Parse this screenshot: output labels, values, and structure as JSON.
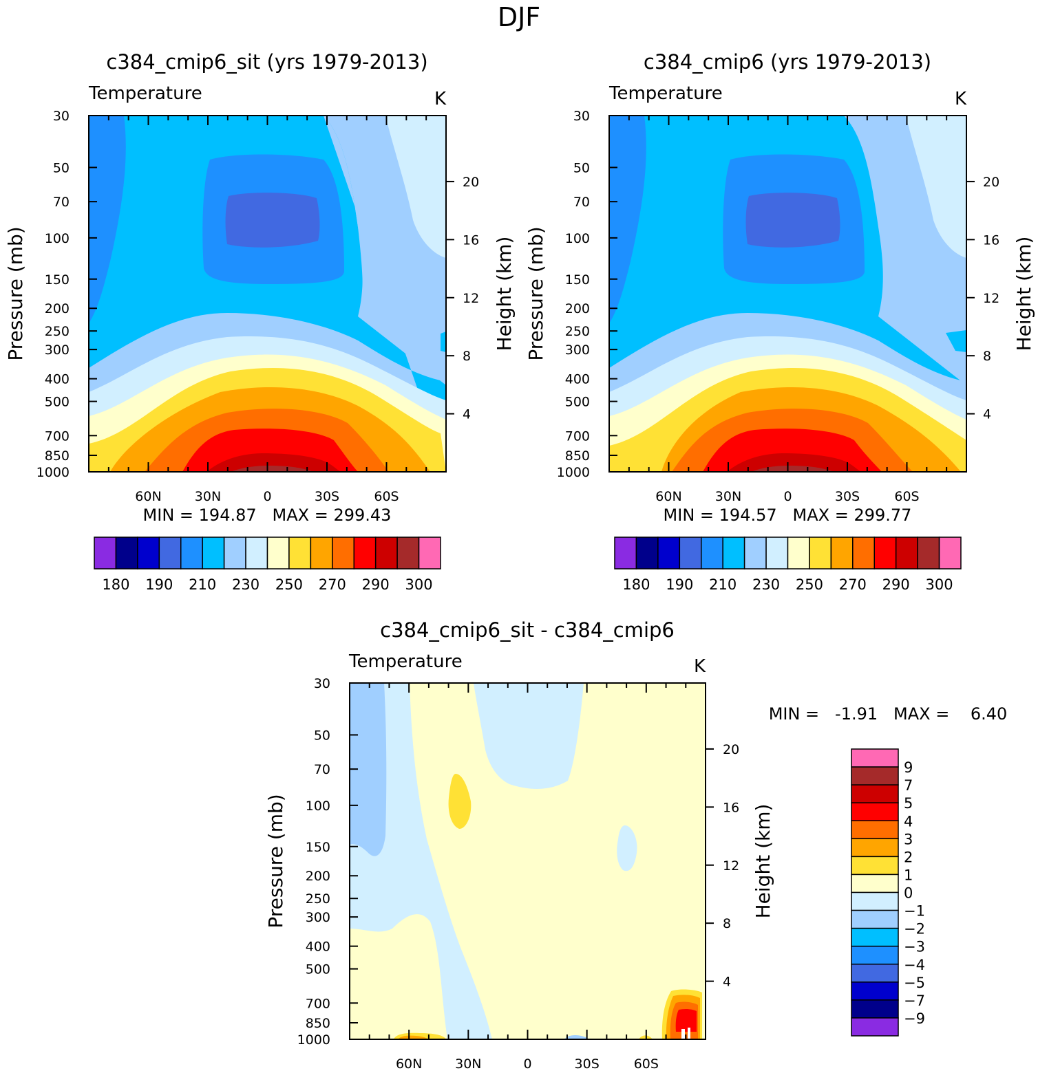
{
  "figure_title": "DJF",
  "colors": {
    "abs": [
      "#8a2be2",
      "#00008b",
      "#0000cd",
      "#4169e1",
      "#1e90ff",
      "#00bfff",
      "#a0cfff",
      "#d1efff",
      "#ffffcc",
      "#ffe135",
      "#ffa500",
      "#ff6e00",
      "#ff0000",
      "#cd0000",
      "#a52a2a",
      "#ff69b4"
    ],
    "diff": [
      "#8a2be2",
      "#00008b",
      "#0000cd",
      "#4169e1",
      "#1e90ff",
      "#00bfff",
      "#a0cfff",
      "#d1efff",
      "#ffffcc",
      "#ffe135",
      "#ffa500",
      "#ff6e00",
      "#ff0000",
      "#cd0000",
      "#a52a2a",
      "#ff69b4"
    ]
  },
  "chart_data": [
    {
      "type": "contour",
      "title": "c384_cmip6_sit (yrs 1979-2013)",
      "left_label": "Temperature",
      "units": "K",
      "xlabel": "",
      "ylabel": "Pressure (mb)",
      "y2label": "Height (km)",
      "x_ticks": [
        "60N",
        "30N",
        "0",
        "30S",
        "60S"
      ],
      "y_ticks": [
        "30",
        "50",
        "70",
        "100",
        "150",
        "200",
        "250",
        "300",
        "400",
        "500",
        "700",
        "850",
        "1000"
      ],
      "y2_ticks": [
        "20",
        "16",
        "12",
        "8",
        "4"
      ],
      "min_max": "MIN = 194.87   MAX = 299.43",
      "colorbar_labels": [
        "180",
        "190",
        "210",
        "230",
        "250",
        "270",
        "290",
        "300"
      ],
      "min": 194.87,
      "max": 299.43
    },
    {
      "type": "contour",
      "title": "c384_cmip6 (yrs 1979-2013)",
      "left_label": "Temperature",
      "units": "K",
      "xlabel": "",
      "ylabel": "Pressure (mb)",
      "y2label": "Height (km)",
      "x_ticks": [
        "60N",
        "30N",
        "0",
        "30S",
        "60S"
      ],
      "y_ticks": [
        "30",
        "50",
        "70",
        "100",
        "150",
        "200",
        "250",
        "300",
        "400",
        "500",
        "700",
        "850",
        "1000"
      ],
      "y2_ticks": [
        "20",
        "16",
        "12",
        "8",
        "4"
      ],
      "min_max": "MIN = 194.57   MAX = 299.77",
      "colorbar_labels": [
        "180",
        "190",
        "210",
        "230",
        "250",
        "270",
        "290",
        "300"
      ],
      "min": 194.57,
      "max": 299.77
    },
    {
      "type": "contour",
      "title": "c384_cmip6_sit - c384_cmip6",
      "left_label": "Temperature",
      "units": "K",
      "xlabel": "",
      "ylabel": "Pressure (mb)",
      "y2label": "Height (km)",
      "x_ticks": [
        "60N",
        "30N",
        "0",
        "30S",
        "60S"
      ],
      "y_ticks": [
        "30",
        "50",
        "70",
        "100",
        "150",
        "200",
        "250",
        "300",
        "400",
        "500",
        "700",
        "850",
        "1000"
      ],
      "y2_ticks": [
        "20",
        "16",
        "12",
        "8",
        "4"
      ],
      "min_max": "MIN =   -1.91   MAX =    6.40",
      "colorbar_labels": [
        "9",
        "7",
        "5",
        "4",
        "3",
        "2",
        "1",
        "0",
        "-1",
        "-2",
        "-3",
        "-4",
        "-5",
        "-7",
        "-9"
      ],
      "min": -1.91,
      "max": 6.4
    }
  ]
}
